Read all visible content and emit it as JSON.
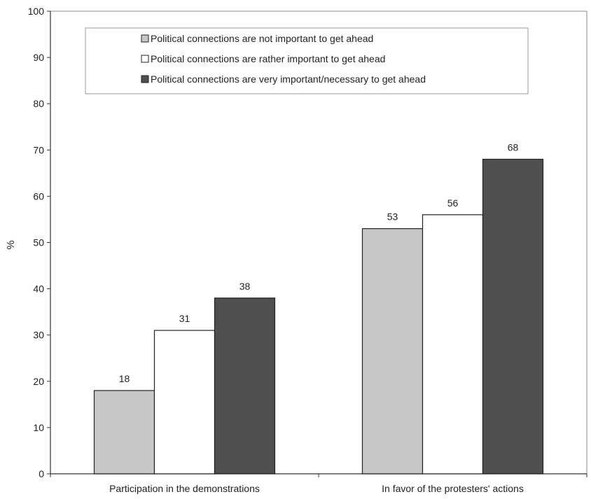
{
  "chart_data": {
    "type": "bar",
    "title": "",
    "xlabel": "",
    "ylabel": "%",
    "ylim": [
      0,
      100
    ],
    "yticks": [
      0,
      10,
      20,
      30,
      40,
      50,
      60,
      70,
      80,
      90,
      100
    ],
    "categories": [
      "Participation in the demonstrations",
      "In favor of the protesters' actions"
    ],
    "series": [
      {
        "name": "Political connections are not important to get ahead",
        "values": [
          18,
          53
        ],
        "color": "#c8c8c8"
      },
      {
        "name": "Political connections are rather important to get ahead",
        "values": [
          31,
          56
        ],
        "color": "#ffffff"
      },
      {
        "name": "Political connections are very important/necessary to get ahead",
        "values": [
          38,
          68
        ],
        "color": "#4f4f4f"
      }
    ],
    "grid": false,
    "legend_position": "top"
  }
}
